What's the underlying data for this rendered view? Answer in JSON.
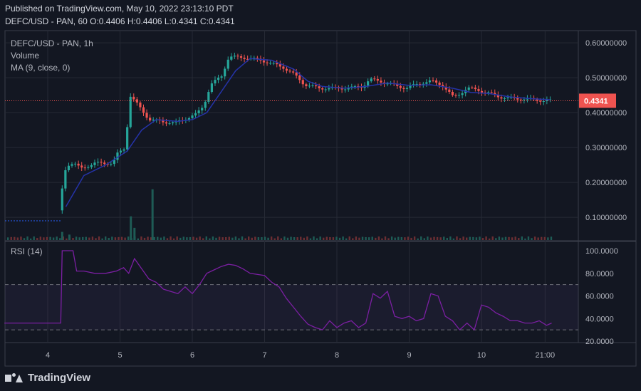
{
  "header": {
    "published": "Published on TradingView.com, May 10, 2022 23:13:10 PDT",
    "ohlc": "DEFC/USD - PAN, 60  O:0.4406  H:0.4406  L:0.4341  C:0.4341"
  },
  "legend": {
    "symbol": "DEFC/USD - PAN, 1h",
    "volume": "Volume",
    "ma": "MA (9, close, 0)"
  },
  "rsi_label": "RSI (14)",
  "price_badge": "0.4341",
  "footer": {
    "brand": "TradingView"
  },
  "colors": {
    "background": "#131722",
    "up": "#26a69a",
    "down": "#ef5350",
    "ma_line": "#2533a8",
    "rsi_line": "#7b1fa2",
    "rsi_band": "#7e57c2",
    "badge": "#ef5350"
  },
  "chart_data": [
    {
      "type": "candlestick",
      "title": "DEFC/USD - PAN, 1h",
      "x_ticks": [
        "4",
        "5",
        "6",
        "7",
        "8",
        "9",
        "10",
        "21:00"
      ],
      "y_ticks": [
        "0.60000000",
        "0.50000000",
        "0.40000000",
        "0.30000000",
        "0.20000000",
        "0.10000000"
      ],
      "ylim": [
        0.035,
        0.635
      ],
      "last_price": 0.4341,
      "price_path": [
        [
          3.4,
          0.09
        ],
        [
          4.18,
          0.09
        ],
        [
          4.22,
          0.15
        ],
        [
          4.3,
          0.25
        ],
        [
          4.4,
          0.255
        ],
        [
          4.5,
          0.24
        ],
        [
          4.7,
          0.255
        ],
        [
          4.95,
          0.255
        ],
        [
          5.0,
          0.28
        ],
        [
          5.12,
          0.3
        ],
        [
          5.18,
          0.45
        ],
        [
          5.3,
          0.42
        ],
        [
          5.45,
          0.38
        ],
        [
          5.6,
          0.375
        ],
        [
          5.8,
          0.37
        ],
        [
          5.92,
          0.38
        ],
        [
          6.1,
          0.395
        ],
        [
          6.2,
          0.42
        ],
        [
          6.3,
          0.48
        ],
        [
          6.45,
          0.505
        ],
        [
          6.55,
          0.56
        ],
        [
          6.75,
          0.558
        ],
        [
          7.0,
          0.55
        ],
        [
          7.3,
          0.53
        ],
        [
          7.45,
          0.51
        ],
        [
          7.6,
          0.48
        ],
        [
          7.8,
          0.47
        ],
        [
          8.0,
          0.47
        ],
        [
          8.2,
          0.47
        ],
        [
          8.4,
          0.475
        ],
        [
          8.5,
          0.495
        ],
        [
          8.65,
          0.49
        ],
        [
          8.8,
          0.48
        ],
        [
          9.0,
          0.47
        ],
        [
          9.2,
          0.485
        ],
        [
          9.35,
          0.49
        ],
        [
          9.5,
          0.48
        ],
        [
          9.65,
          0.445
        ],
        [
          9.75,
          0.455
        ],
        [
          9.85,
          0.47
        ],
        [
          10.0,
          0.465
        ],
        [
          10.15,
          0.455
        ],
        [
          10.3,
          0.445
        ],
        [
          10.45,
          0.44
        ],
        [
          10.6,
          0.44
        ],
        [
          10.75,
          0.437
        ],
        [
          10.95,
          0.4341
        ]
      ],
      "ma_path": [
        [
          4.25,
          0.13
        ],
        [
          4.5,
          0.22
        ],
        [
          4.8,
          0.25
        ],
        [
          5.1,
          0.29
        ],
        [
          5.3,
          0.35
        ],
        [
          5.5,
          0.38
        ],
        [
          5.8,
          0.375
        ],
        [
          6.0,
          0.38
        ],
        [
          6.2,
          0.4
        ],
        [
          6.4,
          0.46
        ],
        [
          6.6,
          0.52
        ],
        [
          6.8,
          0.555
        ],
        [
          7.1,
          0.55
        ],
        [
          7.4,
          0.525
        ],
        [
          7.6,
          0.49
        ],
        [
          7.8,
          0.475
        ],
        [
          8.1,
          0.47
        ],
        [
          8.4,
          0.475
        ],
        [
          8.7,
          0.485
        ],
        [
          9.0,
          0.478
        ],
        [
          9.3,
          0.48
        ],
        [
          9.6,
          0.47
        ],
        [
          9.85,
          0.458
        ],
        [
          10.1,
          0.455
        ],
        [
          10.4,
          0.445
        ],
        [
          10.7,
          0.44
        ],
        [
          10.95,
          0.437
        ]
      ],
      "volume_spikes": [
        {
          "x": 4.2,
          "volume": 0.12
        },
        {
          "x": 4.3,
          "volume": 0.08
        },
        {
          "x": 5.15,
          "volume": 0.35
        },
        {
          "x": 5.2,
          "volume": 0.18
        },
        {
          "x": 5.45,
          "volume": 0.75
        }
      ]
    },
    {
      "type": "line",
      "title": "RSI (14)",
      "y_ticks": [
        "100.0000",
        "80.0000",
        "60.0000",
        "40.0000",
        "20.0000"
      ],
      "ylim": [
        20,
        100
      ],
      "bands": [
        30,
        70
      ],
      "x": [
        3.4,
        4.18,
        4.2,
        4.35,
        4.4,
        4.5,
        4.65,
        4.8,
        4.95,
        5.05,
        5.12,
        5.2,
        5.3,
        5.4,
        5.5,
        5.6,
        5.8,
        5.9,
        6.0,
        6.1,
        6.2,
        6.3,
        6.4,
        6.5,
        6.6,
        6.7,
        6.8,
        7.0,
        7.1,
        7.2,
        7.3,
        7.4,
        7.5,
        7.6,
        7.7,
        7.8,
        7.9,
        8.0,
        8.1,
        8.2,
        8.3,
        8.4,
        8.5,
        8.6,
        8.7,
        8.8,
        8.9,
        9.0,
        9.1,
        9.2,
        9.3,
        9.4,
        9.5,
        9.6,
        9.7,
        9.8,
        9.9,
        10.0,
        10.1,
        10.2,
        10.3,
        10.4,
        10.5,
        10.6,
        10.7,
        10.8,
        10.9,
        10.97
      ],
      "values": [
        36,
        36,
        100,
        100,
        82,
        82,
        80,
        80,
        82,
        85,
        80,
        93,
        84,
        75,
        72,
        66,
        62,
        68,
        62,
        70,
        80,
        83,
        86,
        88,
        87,
        84,
        80,
        78,
        72,
        68,
        58,
        50,
        42,
        35,
        32,
        30,
        38,
        32,
        36,
        38,
        32,
        36,
        62,
        58,
        64,
        42,
        40,
        42,
        38,
        40,
        62,
        60,
        42,
        38,
        30,
        36,
        30,
        52,
        50,
        45,
        42,
        38,
        38,
        36,
        36,
        38,
        34,
        36
      ]
    }
  ]
}
